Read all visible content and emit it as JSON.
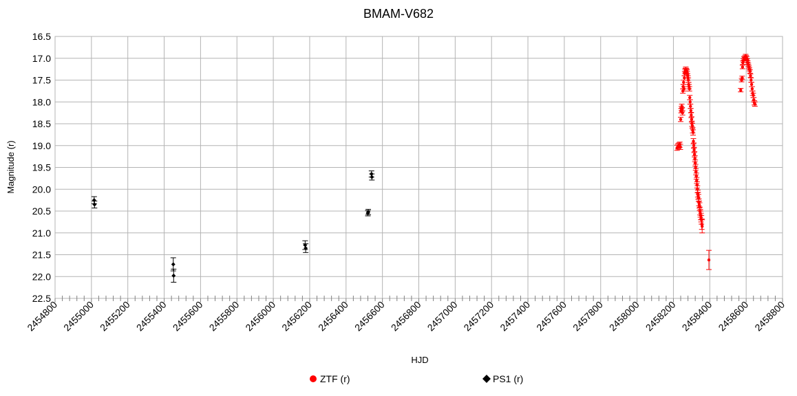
{
  "chart_data": {
    "type": "scatter",
    "title": "BMAM-V682",
    "xlabel": "HJD",
    "ylabel": "Magnitude (r)",
    "xlim": [
      2454800,
      2458800
    ],
    "ylim": [
      16.5,
      22.5
    ],
    "y_inverted": true,
    "grid": true,
    "legend_position": "bottom",
    "x_ticks": [
      2454800,
      2455000,
      2455200,
      2455400,
      2455600,
      2455800,
      2456000,
      2456200,
      2456400,
      2456600,
      2456800,
      2457000,
      2457200,
      2457400,
      2457600,
      2457800,
      2458000,
      2458200,
      2458400,
      2458600,
      2458800
    ],
    "y_ticks": [
      "16.5",
      "17.0",
      "17.5",
      "18.0",
      "18.5",
      "19.0",
      "19.5",
      "20.0",
      "20.5",
      "21.0",
      "21.5",
      "22.0",
      "22.5"
    ],
    "series": [
      {
        "name": "ZTF (r)",
        "color": "#ff0000",
        "marker": "circle",
        "points": [
          [
            2458220,
            19.05,
            0.06
          ],
          [
            2458225,
            19.02,
            0.06
          ],
          [
            2458230,
            19.0,
            0.06
          ],
          [
            2458235,
            18.98,
            0.06
          ],
          [
            2458238,
            19.03,
            0.06
          ],
          [
            2458240,
            18.4,
            0.05
          ],
          [
            2458242,
            18.2,
            0.05
          ],
          [
            2458244,
            18.15,
            0.05
          ],
          [
            2458246,
            18.1,
            0.05
          ],
          [
            2458248,
            18.18,
            0.05
          ],
          [
            2458250,
            18.25,
            0.05
          ],
          [
            2458252,
            17.75,
            0.05
          ],
          [
            2458254,
            17.65,
            0.05
          ],
          [
            2458256,
            17.55,
            0.05
          ],
          [
            2458258,
            17.7,
            0.05
          ],
          [
            2458260,
            17.45,
            0.05
          ],
          [
            2458262,
            17.35,
            0.05
          ],
          [
            2458264,
            17.3,
            0.05
          ],
          [
            2458266,
            17.28,
            0.05
          ],
          [
            2458268,
            17.25,
            0.05
          ],
          [
            2458270,
            17.28,
            0.05
          ],
          [
            2458272,
            17.32,
            0.05
          ],
          [
            2458274,
            17.3,
            0.05
          ],
          [
            2458276,
            17.35,
            0.05
          ],
          [
            2458278,
            17.4,
            0.05
          ],
          [
            2458280,
            17.45,
            0.05
          ],
          [
            2458282,
            17.5,
            0.05
          ],
          [
            2458284,
            17.6,
            0.05
          ],
          [
            2458286,
            17.65,
            0.05
          ],
          [
            2458288,
            17.7,
            0.05
          ],
          [
            2458290,
            17.9,
            0.05
          ],
          [
            2458292,
            18.0,
            0.05
          ],
          [
            2458294,
            18.1,
            0.05
          ],
          [
            2458296,
            18.2,
            0.05
          ],
          [
            2458298,
            18.3,
            0.06
          ],
          [
            2458300,
            18.4,
            0.06
          ],
          [
            2458302,
            18.5,
            0.06
          ],
          [
            2458304,
            18.55,
            0.06
          ],
          [
            2458306,
            18.65,
            0.06
          ],
          [
            2458308,
            18.7,
            0.06
          ],
          [
            2458310,
            18.9,
            0.06
          ],
          [
            2458312,
            19.0,
            0.06
          ],
          [
            2458314,
            19.1,
            0.06
          ],
          [
            2458316,
            19.2,
            0.06
          ],
          [
            2458318,
            19.3,
            0.07
          ],
          [
            2458320,
            19.4,
            0.07
          ],
          [
            2458322,
            19.5,
            0.07
          ],
          [
            2458324,
            19.6,
            0.07
          ],
          [
            2458326,
            19.7,
            0.07
          ],
          [
            2458328,
            19.8,
            0.07
          ],
          [
            2458330,
            19.9,
            0.07
          ],
          [
            2458332,
            20.0,
            0.08
          ],
          [
            2458334,
            20.1,
            0.08
          ],
          [
            2458336,
            20.15,
            0.08
          ],
          [
            2458338,
            20.2,
            0.08
          ],
          [
            2458340,
            20.3,
            0.08
          ],
          [
            2458342,
            20.35,
            0.08
          ],
          [
            2458344,
            20.4,
            0.09
          ],
          [
            2458346,
            20.5,
            0.09
          ],
          [
            2458348,
            20.55,
            0.09
          ],
          [
            2458350,
            20.6,
            0.1
          ],
          [
            2458352,
            20.65,
            0.1
          ],
          [
            2458354,
            20.7,
            0.1
          ],
          [
            2458356,
            20.8,
            0.12
          ],
          [
            2458358,
            20.85,
            0.15
          ],
          [
            2458395,
            21.62,
            0.22
          ],
          [
            2458570,
            17.73,
            0.04
          ],
          [
            2458575,
            17.5,
            0.04
          ],
          [
            2458578,
            17.45,
            0.04
          ],
          [
            2458580,
            17.2,
            0.04
          ],
          [
            2458582,
            17.1,
            0.04
          ],
          [
            2458585,
            17.05,
            0.04
          ],
          [
            2458588,
            17.0,
            0.04
          ],
          [
            2458591,
            17.02,
            0.04
          ],
          [
            2458594,
            16.98,
            0.04
          ],
          [
            2458597,
            16.95,
            0.04
          ],
          [
            2458600,
            16.98,
            0.04
          ],
          [
            2458603,
            17.0,
            0.04
          ],
          [
            2458606,
            17.05,
            0.04
          ],
          [
            2458609,
            17.1,
            0.04
          ],
          [
            2458612,
            17.15,
            0.04
          ],
          [
            2458615,
            17.2,
            0.04
          ],
          [
            2458618,
            17.25,
            0.04
          ],
          [
            2458621,
            17.3,
            0.04
          ],
          [
            2458624,
            17.4,
            0.04
          ],
          [
            2458627,
            17.5,
            0.05
          ],
          [
            2458630,
            17.6,
            0.05
          ],
          [
            2458633,
            17.7,
            0.05
          ],
          [
            2458636,
            17.8,
            0.05
          ],
          [
            2458639,
            17.85,
            0.05
          ],
          [
            2458642,
            17.95,
            0.05
          ],
          [
            2458645,
            18.02,
            0.05
          ],
          [
            2458648,
            18.05,
            0.05
          ]
        ]
      },
      {
        "name": "PS1 (r)",
        "color": "#000000",
        "marker": "diamond",
        "points": [
          [
            2455015,
            20.25,
            0.08
          ],
          [
            2455017,
            20.35,
            0.08
          ],
          [
            2455450,
            21.72,
            0.15
          ],
          [
            2455452,
            21.98,
            0.15
          ],
          [
            2456175,
            21.28,
            0.1
          ],
          [
            2456178,
            21.35,
            0.1
          ],
          [
            2456520,
            20.55,
            0.06
          ],
          [
            2456522,
            20.52,
            0.06
          ],
          [
            2456540,
            19.65,
            0.07
          ],
          [
            2456542,
            19.72,
            0.07
          ]
        ]
      }
    ]
  }
}
